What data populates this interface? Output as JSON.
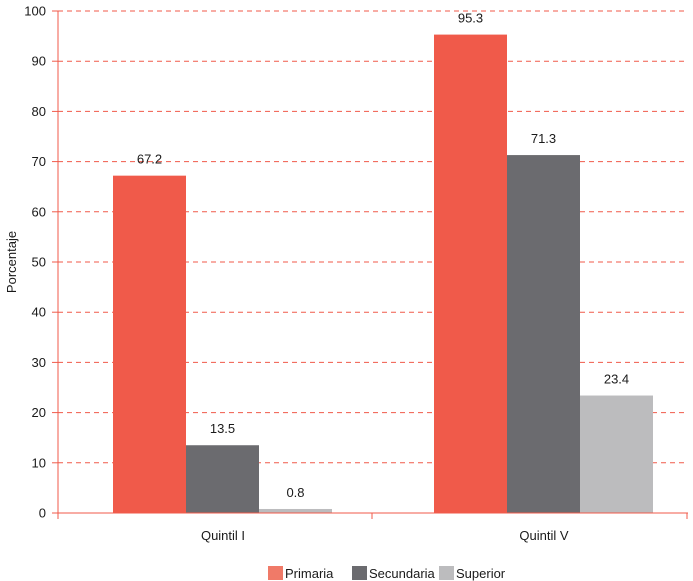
{
  "chart_data": {
    "type": "bar",
    "title": "",
    "xlabel": "",
    "ylabel": "Porcentaje",
    "ylim": [
      0,
      100
    ],
    "yticks": [
      0,
      10,
      20,
      30,
      40,
      50,
      60,
      70,
      80,
      90,
      100
    ],
    "categories": [
      "Quintil I",
      "Quintil V"
    ],
    "series": [
      {
        "name": "Primaria",
        "values": [
          67.2,
          95.3
        ],
        "labels": [
          "67.2",
          "95.3"
        ],
        "color": "#f05a4a"
      },
      {
        "name": "Secundaria",
        "values": [
          13.5,
          71.3
        ],
        "labels": [
          "13.5",
          "71.3"
        ],
        "color": "#6b6b6f"
      },
      {
        "name": "Superior",
        "values": [
          0.8,
          23.4
        ],
        "labels": [
          "0.8",
          "23.4"
        ],
        "color": "#bcbcbe"
      }
    ],
    "grid": true,
    "grid_style": "dashed",
    "grid_color": "#f05a4a",
    "axis_color": "#f05a4a",
    "legend_position": "bottom-center"
  }
}
